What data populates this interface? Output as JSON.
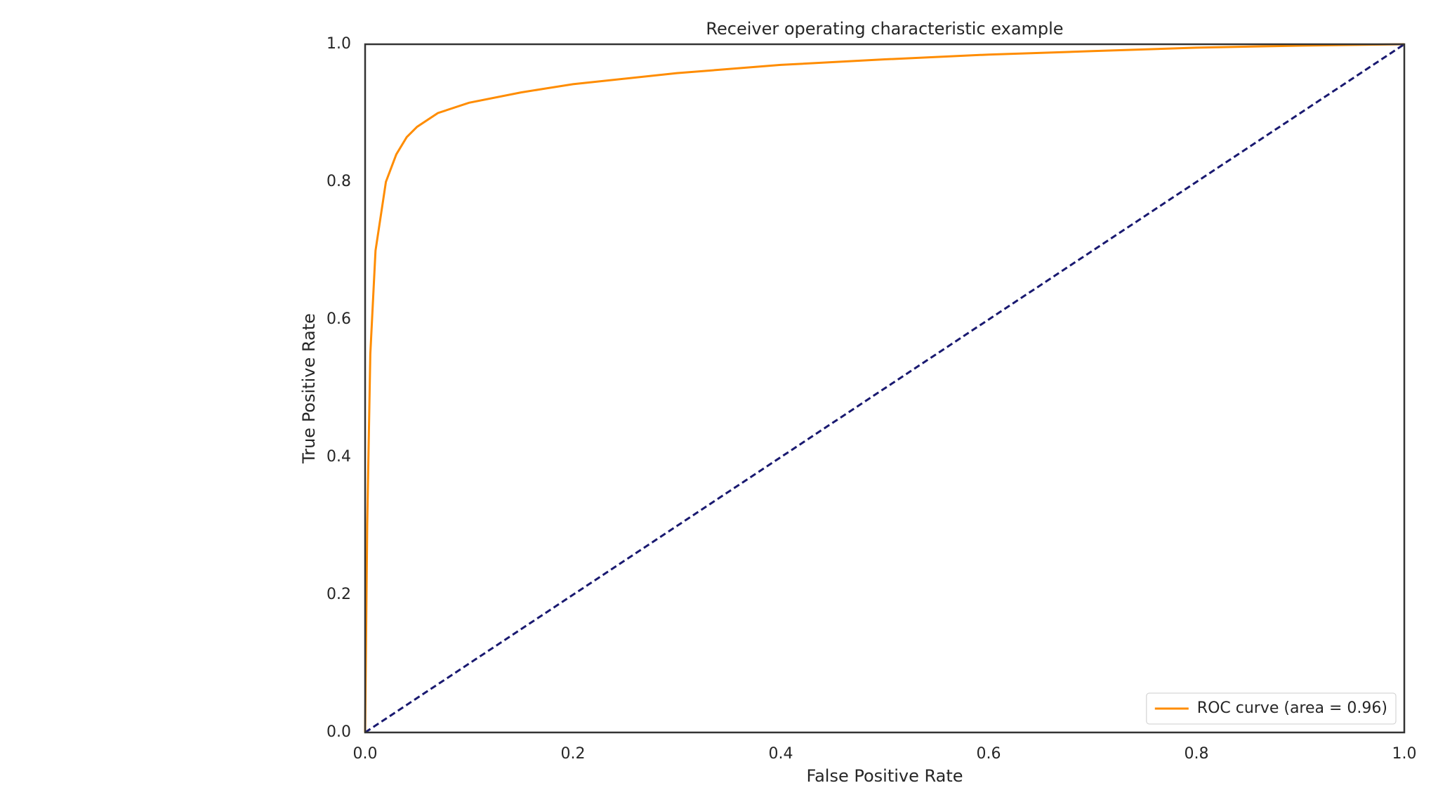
{
  "chart_data": {
    "type": "line",
    "title": "Receiver operating characteristic example",
    "xlabel": "False Positive Rate",
    "ylabel": "True Positive Rate",
    "xlim": [
      0,
      1
    ],
    "ylim": [
      0,
      1
    ],
    "xticks": [
      {
        "value": 0,
        "label": "0.0"
      },
      0.2,
      0.4,
      0.6,
      0.8,
      {
        "value": 1,
        "label": "1.0"
      }
    ],
    "yticks": [
      {
        "value": 0,
        "label": "0.0"
      },
      0.2,
      0.4,
      0.6,
      0.8,
      {
        "value": 1,
        "label": "1.0"
      }
    ],
    "grid": false,
    "legend": "lower right",
    "series": [
      {
        "name": "ROC curve (area = 0.96)",
        "color": "#ff8c00",
        "dash": false,
        "x": [
          0,
          0.002,
          0.005,
          0.01,
          0.02,
          0.03,
          0.04,
          0.05,
          0.07,
          0.1,
          0.15,
          0.2,
          0.3,
          0.4,
          0.5,
          0.6,
          0.7,
          0.8,
          0.9,
          1
        ],
        "values": [
          0,
          0.3,
          0.55,
          0.7,
          0.8,
          0.84,
          0.865,
          0.88,
          0.9,
          0.915,
          0.93,
          0.942,
          0.958,
          0.97,
          0.978,
          0.985,
          0.99,
          0.995,
          0.998,
          1
        ]
      },
      {
        "color": "#191970",
        "dash": true,
        "x": [
          0,
          1
        ],
        "values": [
          0,
          1
        ]
      }
    ]
  }
}
